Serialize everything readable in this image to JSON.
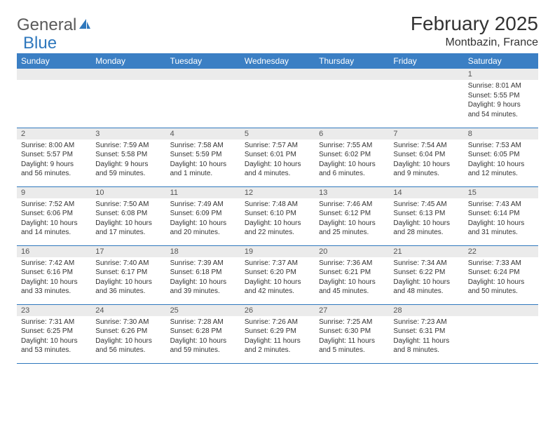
{
  "brand": {
    "part1": "General",
    "part2": "Blue"
  },
  "title": "February 2025",
  "location": "Montbazin, France",
  "colors": {
    "header_bg": "#3b7fc4",
    "header_text": "#ffffff",
    "daynum_bg": "#ebebeb",
    "border": "#2f78bd",
    "text": "#333333",
    "logo_gray": "#5a5a5a",
    "logo_blue": "#2f78bd"
  },
  "fonts": {
    "title_pt": 28,
    "location_pt": 16,
    "header_pt": 12,
    "daynum_pt": 11,
    "body_pt": 10
  },
  "day_names": [
    "Sunday",
    "Monday",
    "Tuesday",
    "Wednesday",
    "Thursday",
    "Friday",
    "Saturday"
  ],
  "weeks": [
    [
      null,
      null,
      null,
      null,
      null,
      null,
      {
        "n": "1",
        "sunrise": "8:01 AM",
        "sunset": "5:55 PM",
        "daylight": "9 hours and 54 minutes."
      }
    ],
    [
      {
        "n": "2",
        "sunrise": "8:00 AM",
        "sunset": "5:57 PM",
        "daylight": "9 hours and 56 minutes."
      },
      {
        "n": "3",
        "sunrise": "7:59 AM",
        "sunset": "5:58 PM",
        "daylight": "9 hours and 59 minutes."
      },
      {
        "n": "4",
        "sunrise": "7:58 AM",
        "sunset": "5:59 PM",
        "daylight": "10 hours and 1 minute."
      },
      {
        "n": "5",
        "sunrise": "7:57 AM",
        "sunset": "6:01 PM",
        "daylight": "10 hours and 4 minutes."
      },
      {
        "n": "6",
        "sunrise": "7:55 AM",
        "sunset": "6:02 PM",
        "daylight": "10 hours and 6 minutes."
      },
      {
        "n": "7",
        "sunrise": "7:54 AM",
        "sunset": "6:04 PM",
        "daylight": "10 hours and 9 minutes."
      },
      {
        "n": "8",
        "sunrise": "7:53 AM",
        "sunset": "6:05 PM",
        "daylight": "10 hours and 12 minutes."
      }
    ],
    [
      {
        "n": "9",
        "sunrise": "7:52 AM",
        "sunset": "6:06 PM",
        "daylight": "10 hours and 14 minutes."
      },
      {
        "n": "10",
        "sunrise": "7:50 AM",
        "sunset": "6:08 PM",
        "daylight": "10 hours and 17 minutes."
      },
      {
        "n": "11",
        "sunrise": "7:49 AM",
        "sunset": "6:09 PM",
        "daylight": "10 hours and 20 minutes."
      },
      {
        "n": "12",
        "sunrise": "7:48 AM",
        "sunset": "6:10 PM",
        "daylight": "10 hours and 22 minutes."
      },
      {
        "n": "13",
        "sunrise": "7:46 AM",
        "sunset": "6:12 PM",
        "daylight": "10 hours and 25 minutes."
      },
      {
        "n": "14",
        "sunrise": "7:45 AM",
        "sunset": "6:13 PM",
        "daylight": "10 hours and 28 minutes."
      },
      {
        "n": "15",
        "sunrise": "7:43 AM",
        "sunset": "6:14 PM",
        "daylight": "10 hours and 31 minutes."
      }
    ],
    [
      {
        "n": "16",
        "sunrise": "7:42 AM",
        "sunset": "6:16 PM",
        "daylight": "10 hours and 33 minutes."
      },
      {
        "n": "17",
        "sunrise": "7:40 AM",
        "sunset": "6:17 PM",
        "daylight": "10 hours and 36 minutes."
      },
      {
        "n": "18",
        "sunrise": "7:39 AM",
        "sunset": "6:18 PM",
        "daylight": "10 hours and 39 minutes."
      },
      {
        "n": "19",
        "sunrise": "7:37 AM",
        "sunset": "6:20 PM",
        "daylight": "10 hours and 42 minutes."
      },
      {
        "n": "20",
        "sunrise": "7:36 AM",
        "sunset": "6:21 PM",
        "daylight": "10 hours and 45 minutes."
      },
      {
        "n": "21",
        "sunrise": "7:34 AM",
        "sunset": "6:22 PM",
        "daylight": "10 hours and 48 minutes."
      },
      {
        "n": "22",
        "sunrise": "7:33 AM",
        "sunset": "6:24 PM",
        "daylight": "10 hours and 50 minutes."
      }
    ],
    [
      {
        "n": "23",
        "sunrise": "7:31 AM",
        "sunset": "6:25 PM",
        "daylight": "10 hours and 53 minutes."
      },
      {
        "n": "24",
        "sunrise": "7:30 AM",
        "sunset": "6:26 PM",
        "daylight": "10 hours and 56 minutes."
      },
      {
        "n": "25",
        "sunrise": "7:28 AM",
        "sunset": "6:28 PM",
        "daylight": "10 hours and 59 minutes."
      },
      {
        "n": "26",
        "sunrise": "7:26 AM",
        "sunset": "6:29 PM",
        "daylight": "11 hours and 2 minutes."
      },
      {
        "n": "27",
        "sunrise": "7:25 AM",
        "sunset": "6:30 PM",
        "daylight": "11 hours and 5 minutes."
      },
      {
        "n": "28",
        "sunrise": "7:23 AM",
        "sunset": "6:31 PM",
        "daylight": "11 hours and 8 minutes."
      },
      null
    ]
  ],
  "labels": {
    "sunrise": "Sunrise: ",
    "sunset": "Sunset: ",
    "daylight": "Daylight: "
  }
}
